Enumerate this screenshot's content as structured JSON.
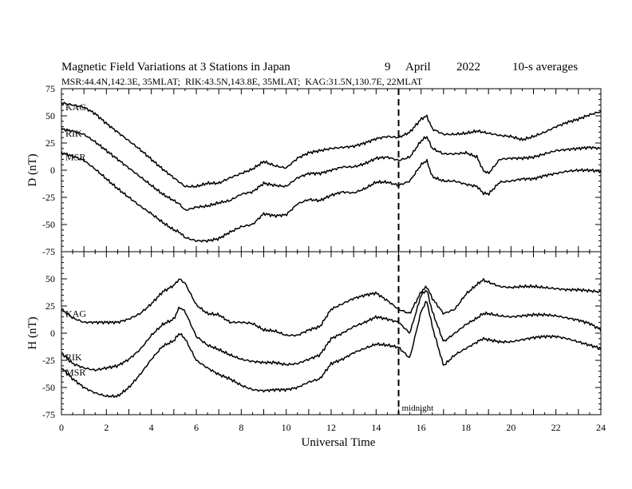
{
  "chart_data": {
    "type": "line",
    "title": "Magnetic Field Variations at 3 Stations in Japan",
    "date_day": "9",
    "date_month": "April",
    "date_year": "2022",
    "averaging": "10-s averages",
    "subtitle": "MSR:44.4N,142.3E, 35MLAT;  RIK:43.5N,143.8E, 35MLAT;  KAG:31.5N,130.7E, 22MLAT",
    "xlabel": "Universal Time",
    "xlim": [
      0,
      24
    ],
    "x_ticks": [
      "0",
      "2",
      "4",
      "6",
      "8",
      "10",
      "12",
      "14",
      "16",
      "18",
      "20",
      "22",
      "24"
    ],
    "y_ticks": [
      "75",
      "50",
      "25",
      "0",
      "-25",
      "-50",
      "-75"
    ],
    "marker": {
      "x": 15,
      "label": "midnight"
    },
    "line_color": "#000000",
    "x": [
      0,
      0.5,
      1,
      1.5,
      2,
      2.5,
      3,
      3.5,
      4,
      4.5,
      5,
      5.25,
      5.5,
      6,
      6.5,
      7,
      7.5,
      8,
      8.5,
      9,
      9.5,
      10,
      10.5,
      11,
      11.5,
      12,
      12.5,
      13,
      13.5,
      14,
      14.5,
      15,
      15.5,
      16,
      16.25,
      16.5,
      17,
      17.5,
      18,
      18.5,
      18.75,
      19,
      19.5,
      20,
      20.5,
      21,
      21.5,
      22,
      22.5,
      23,
      23.5,
      24
    ],
    "panels": [
      {
        "ylabel": "D (nT)",
        "ylim": [
          -75,
          75
        ],
        "series": [
          {
            "name": "KAG",
            "values": [
              62,
              60,
              58,
              52,
              43,
              35,
              27,
              19,
              10,
              1,
              -7,
              -11,
              -15,
              -15,
              -12,
              -12,
              -7,
              -3,
              1,
              8,
              4,
              2,
              11,
              16,
              18,
              20,
              21,
              22,
              25,
              29,
              31,
              30,
              35,
              47,
              50,
              38,
              33,
              33,
              34,
              36,
              35,
              34,
              32,
              31,
              28,
              31,
              35,
              40,
              44,
              47,
              51,
              54
            ]
          },
          {
            "name": "RIK",
            "values": [
              38,
              36,
              33,
              26,
              18,
              10,
              2,
              -6,
              -14,
              -22,
              -28,
              -31,
              -37,
              -34,
              -33,
              -30,
              -28,
              -22,
              -20,
              -12,
              -14,
              -15,
              -7,
              -3,
              -3,
              0,
              3,
              3,
              6,
              11,
              12,
              9,
              12,
              27,
              31,
              20,
              15,
              15,
              16,
              12,
              0,
              -3,
              10,
              11,
              11,
              12,
              15,
              18,
              19,
              20,
              21,
              20
            ]
          },
          {
            "name": "MSR",
            "values": [
              16,
              13,
              9,
              1,
              -8,
              -17,
              -25,
              -33,
              -40,
              -48,
              -55,
              -57,
              -62,
              -65,
              -65,
              -63,
              -57,
              -52,
              -50,
              -40,
              -42,
              -41,
              -31,
              -27,
              -28,
              -23,
              -20,
              -21,
              -17,
              -11,
              -11,
              -14,
              -10,
              5,
              9,
              -6,
              -10,
              -10,
              -13,
              -15,
              -21,
              -22,
              -11,
              -10,
              -8,
              -8,
              -5,
              -3,
              -1,
              0,
              0,
              -1
            ]
          }
        ]
      },
      {
        "ylabel": "H (nT)",
        "ylim": [
          -75,
          75
        ],
        "series": [
          {
            "name": "KAG",
            "values": [
              22,
              14,
              10,
              10,
              10,
              10,
              13,
              18,
              27,
              38,
              44,
              50,
              46,
              26,
              18,
              17,
              10,
              10,
              9,
              3,
              2,
              -2,
              -2,
              3,
              6,
              22,
              27,
              32,
              35,
              37,
              30,
              22,
              18,
              38,
              43,
              32,
              18,
              22,
              36,
              45,
              49,
              47,
              43,
              42,
              43,
              43,
              42,
              41,
              40,
              40,
              39,
              38
            ]
          },
          {
            "name": "RIK",
            "values": [
              -18,
              -28,
              -32,
              -34,
              -32,
              -30,
              -24,
              -15,
              -2,
              8,
              13,
              24,
              20,
              -3,
              -11,
              -15,
              -20,
              -24,
              -26,
              -27,
              -27,
              -29,
              -28,
              -24,
              -20,
              -5,
              0,
              6,
              10,
              15,
              13,
              10,
              0,
              35,
              40,
              20,
              -8,
              0,
              8,
              14,
              18,
              18,
              16,
              15,
              16,
              17,
              17,
              16,
              14,
              12,
              9,
              3
            ]
          },
          {
            "name": "MSR",
            "values": [
              -32,
              -42,
              -50,
              -55,
              -58,
              -58,
              -50,
              -38,
              -24,
              -12,
              -7,
              0,
              -5,
              -25,
              -32,
              -38,
              -42,
              -48,
              -52,
              -53,
              -52,
              -52,
              -50,
              -45,
              -42,
              -28,
              -24,
              -18,
              -14,
              -10,
              -11,
              -13,
              -23,
              20,
              30,
              6,
              -30,
              -20,
              -14,
              -8,
              -5,
              -6,
              -8,
              -8,
              -6,
              -4,
              -3,
              -3,
              -5,
              -8,
              -11,
              -14
            ]
          }
        ]
      }
    ]
  }
}
